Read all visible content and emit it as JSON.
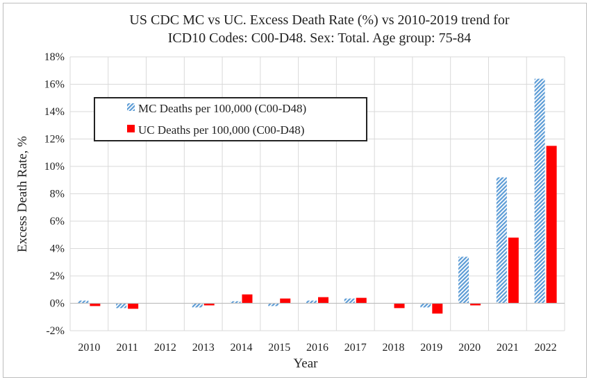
{
  "chart_data": {
    "type": "bar",
    "title": [
      "US CDC MC vs UC. Excess Death Rate (%) vs 2010-2019 trend for",
      "ICD10 Codes: C00-D48. Sex: Total. Age group: 75-84"
    ],
    "xlabel": "Year",
    "ylabel": "Excess Death Rate, %",
    "categories": [
      "2010",
      "2011",
      "2012",
      "2013",
      "2014",
      "2015",
      "2016",
      "2017",
      "2018",
      "2019",
      "2020",
      "2021",
      "2022"
    ],
    "series": [
      {
        "name": "MC Deaths per 100,000 (C00-D48)",
        "values": [
          0.2,
          -0.35,
          0.0,
          -0.3,
          0.15,
          -0.2,
          0.2,
          0.35,
          0.0,
          -0.3,
          3.4,
          9.2,
          16.4
        ],
        "color": "#5b9bd5",
        "pattern": "diagonal-hatch"
      },
      {
        "name": "UC Deaths per 100,000 (C00-D48)",
        "values": [
          -0.2,
          -0.4,
          0.0,
          -0.15,
          0.65,
          0.35,
          0.45,
          0.4,
          -0.35,
          -0.75,
          -0.15,
          4.8,
          11.5
        ],
        "color": "#ff0000",
        "pattern": "solid"
      }
    ],
    "ylim": [
      -2,
      18
    ],
    "yticks": [
      "-2%",
      "0%",
      "2%",
      "4%",
      "6%",
      "8%",
      "10%",
      "12%",
      "14%",
      "16%",
      "18%"
    ],
    "ytick_values": [
      -2,
      0,
      2,
      4,
      6,
      8,
      10,
      12,
      14,
      16,
      18
    ],
    "grid": true,
    "legend_placement": "upper-left"
  }
}
